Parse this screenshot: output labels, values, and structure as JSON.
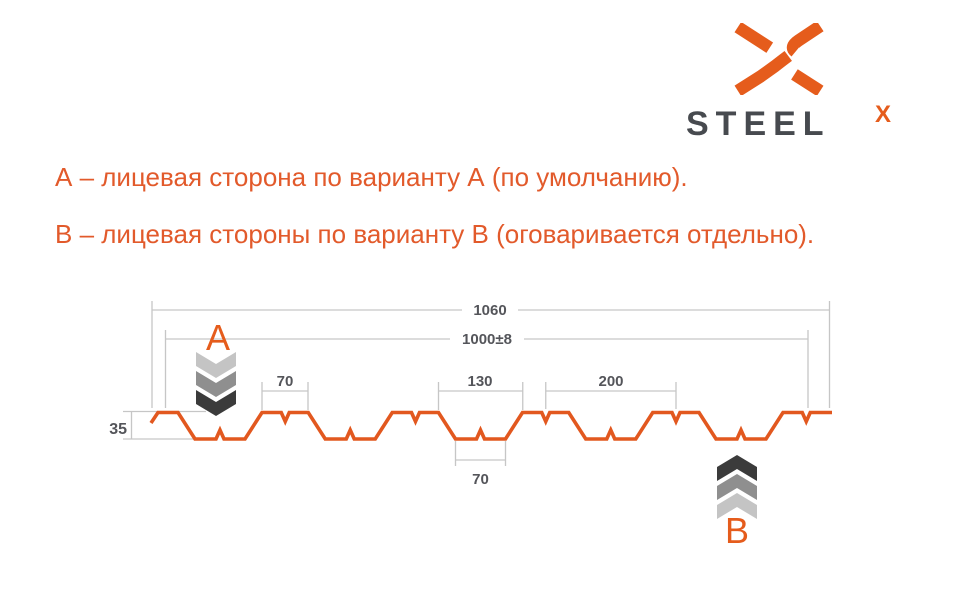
{
  "logo": {
    "brand": "STEEL",
    "sup": "X"
  },
  "notes": {
    "line_a": "А – лицевая сторона по варианту А (по умолчанию).",
    "line_b": "В – лицевая стороны по варианту В (оговаривается отдельно)."
  },
  "diagram": {
    "marker_a": "A",
    "marker_b": "B",
    "dims": {
      "overall_width": "1060",
      "working_width": "1000±8",
      "crest_width": "70",
      "valley_opening": "130",
      "pitch": "200",
      "valley_width": "70",
      "profile_height": "35"
    },
    "chevrons": {
      "a": [
        "#c4c4c4",
        "#8f8f8f",
        "#3b3b3b"
      ],
      "b": [
        "#3b3b3b",
        "#8f8f8f",
        "#c4c4c4"
      ]
    },
    "colors": {
      "accent": "#e2581f",
      "dim_line": "#c6c6c6",
      "dim_text": "#54555a"
    }
  }
}
